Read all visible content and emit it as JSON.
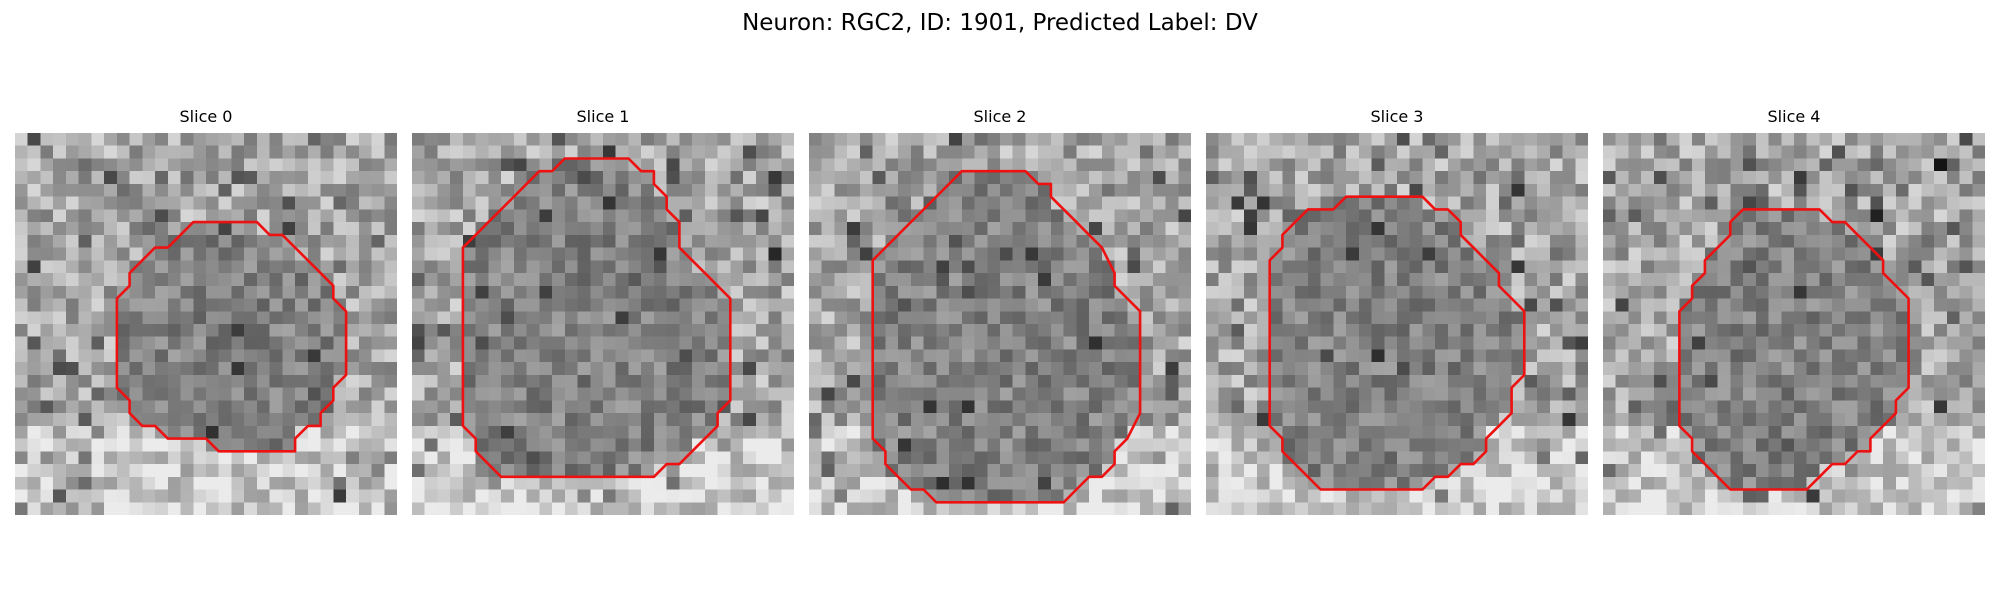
{
  "figure": {
    "title": "Neuron: RGC2, ID: 1901, Predicted Label: DV"
  },
  "panels": [
    {
      "title": "Slice 0"
    },
    {
      "title": "Slice 1"
    },
    {
      "title": "Slice 2"
    },
    {
      "title": "Slice 3"
    },
    {
      "title": "Slice 4"
    }
  ],
  "colors": {
    "contour": "#ee1111",
    "background": "#ffffff"
  }
}
